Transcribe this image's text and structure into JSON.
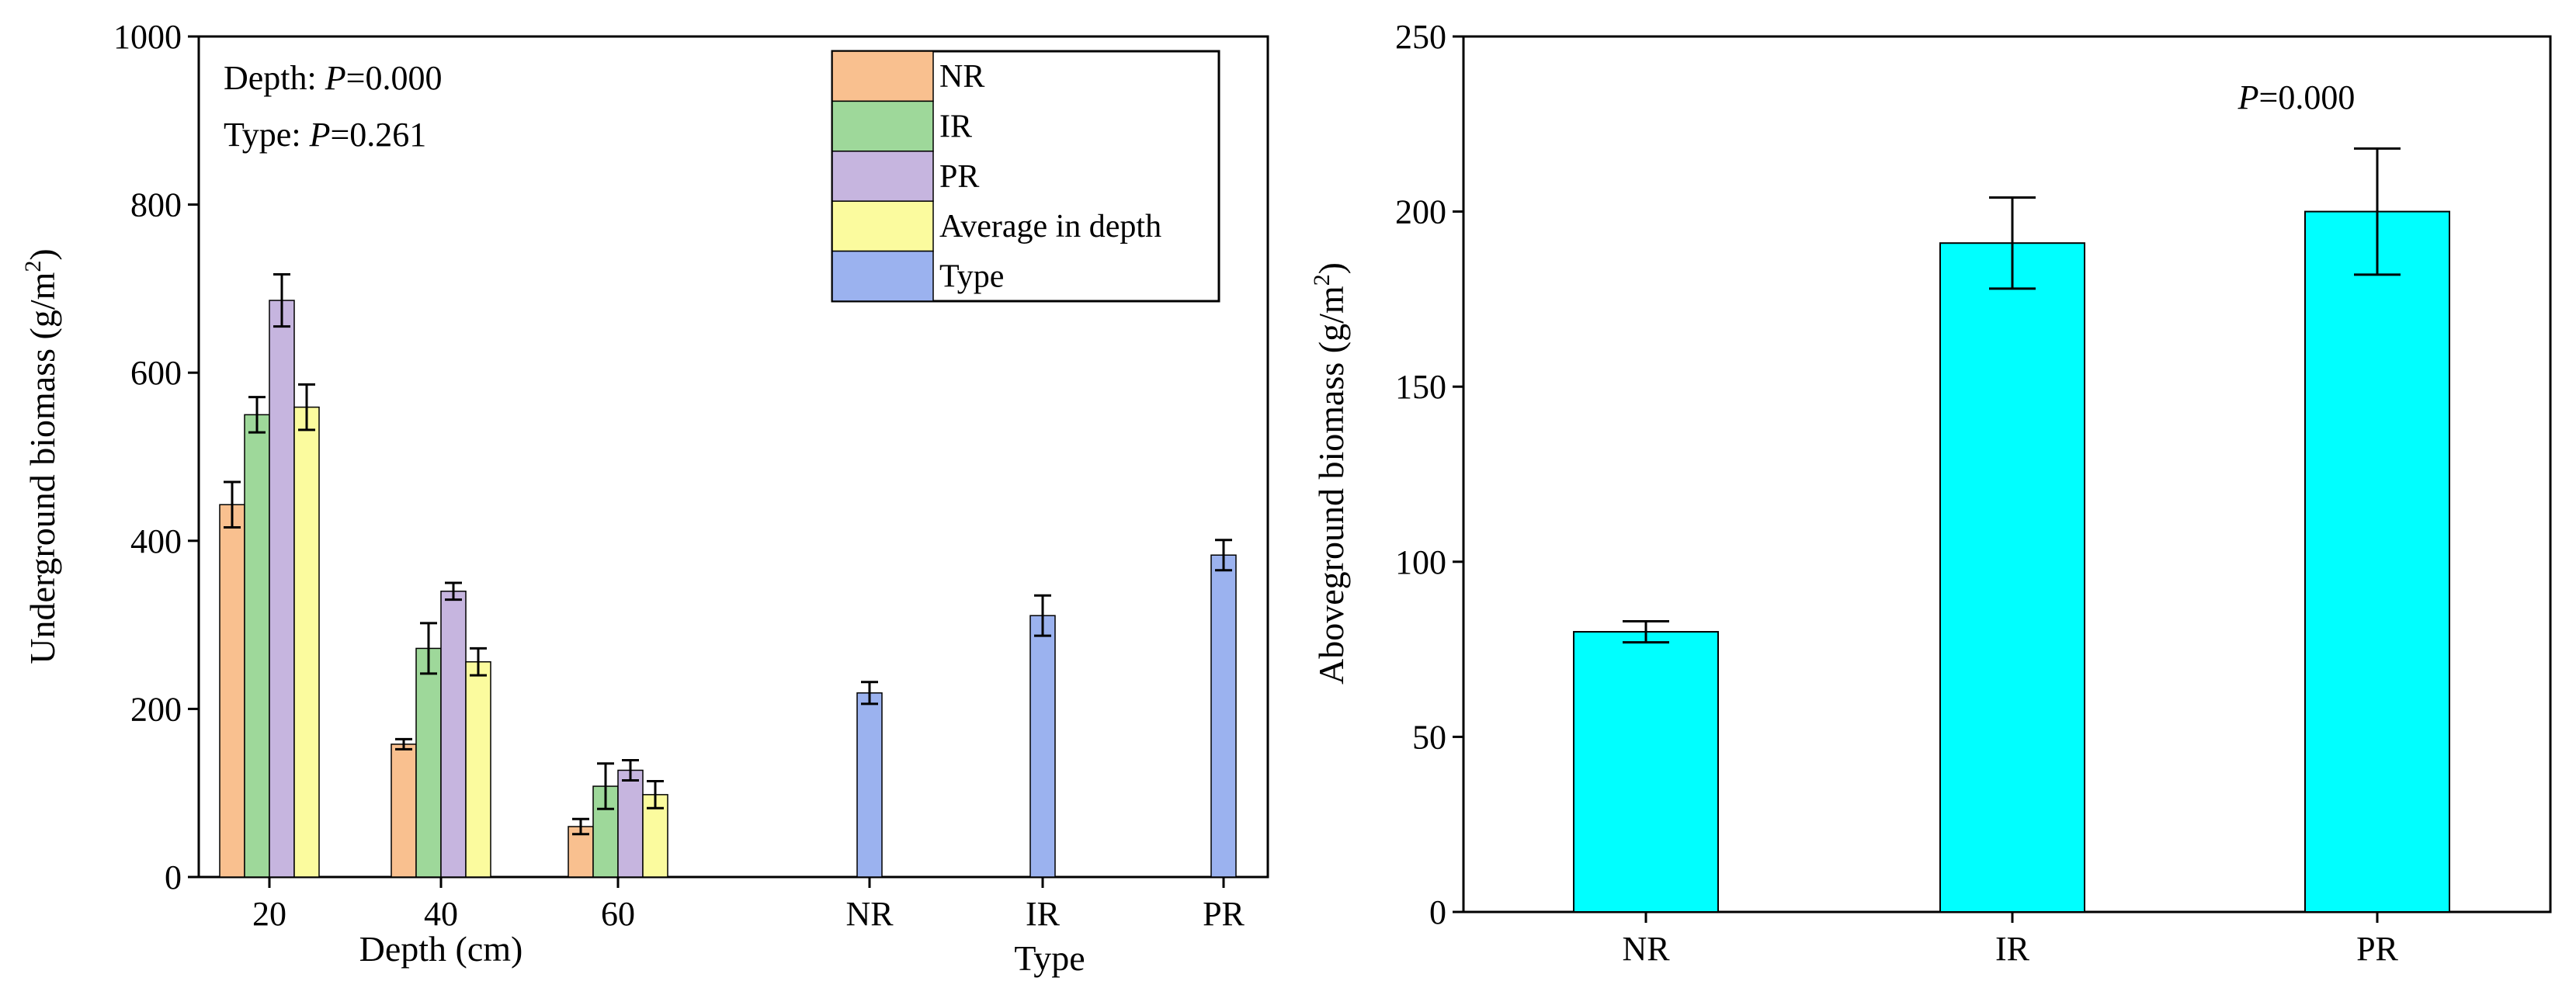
{
  "chart_data": [
    {
      "type": "bar",
      "ylabel": "Underground biomass (g/m",
      "ylabel_sup": "2",
      "ylabel_tail": ")",
      "ylim": [
        0,
        1000
      ],
      "yticks": [
        0,
        200,
        400,
        600,
        800,
        1000
      ],
      "xgroup_labels": {
        "depth": "Depth (cm)",
        "type": "Type"
      },
      "depth_categories": [
        "20",
        "40",
        "60"
      ],
      "type_categories": [
        "NR",
        "IR",
        "PR"
      ],
      "annotations": [
        {
          "prefix": "Depth: ",
          "p": "P",
          "value": "=0.000"
        },
        {
          "prefix": "Type: ",
          "p": "P",
          "value": "=0.261"
        }
      ],
      "legend": [
        "NR",
        "IR",
        "PR",
        "Average in depth",
        "Type"
      ],
      "colors": {
        "NR": "#f9c08f",
        "IR": "#9ed89a",
        "PR": "#c6b5df",
        "Average in depth": "#fbfb9e",
        "Type": "#9bb2ef"
      },
      "depth_series": [
        {
          "name": "NR",
          "values": [
            443,
            158,
            60
          ],
          "errors": [
            27,
            6,
            9
          ]
        },
        {
          "name": "IR",
          "values": [
            550,
            272,
            108
          ],
          "errors": [
            21,
            30,
            27
          ]
        },
        {
          "name": "PR",
          "values": [
            686,
            340,
            127
          ],
          "errors": [
            31,
            10,
            12
          ]
        },
        {
          "name": "Average in depth",
          "values": [
            559,
            256,
            98
          ],
          "errors": [
            27,
            16,
            16
          ]
        }
      ],
      "type_series": {
        "name": "Type",
        "values": [
          219,
          311,
          383
        ],
        "errors": [
          13,
          24,
          18
        ]
      }
    },
    {
      "type": "bar",
      "ylabel": "Aboveground biomass (g/m",
      "ylabel_sup": "2",
      "ylabel_tail": ")",
      "ylim": [
        0,
        250
      ],
      "yticks": [
        0,
        50,
        100,
        150,
        200,
        250
      ],
      "categories": [
        "NR",
        "IR",
        "PR"
      ],
      "values": [
        80,
        191,
        200
      ],
      "errors": [
        3,
        13,
        18
      ],
      "color": "#00ffff",
      "annotation": {
        "p": "P",
        "value": "=0.000"
      }
    }
  ]
}
